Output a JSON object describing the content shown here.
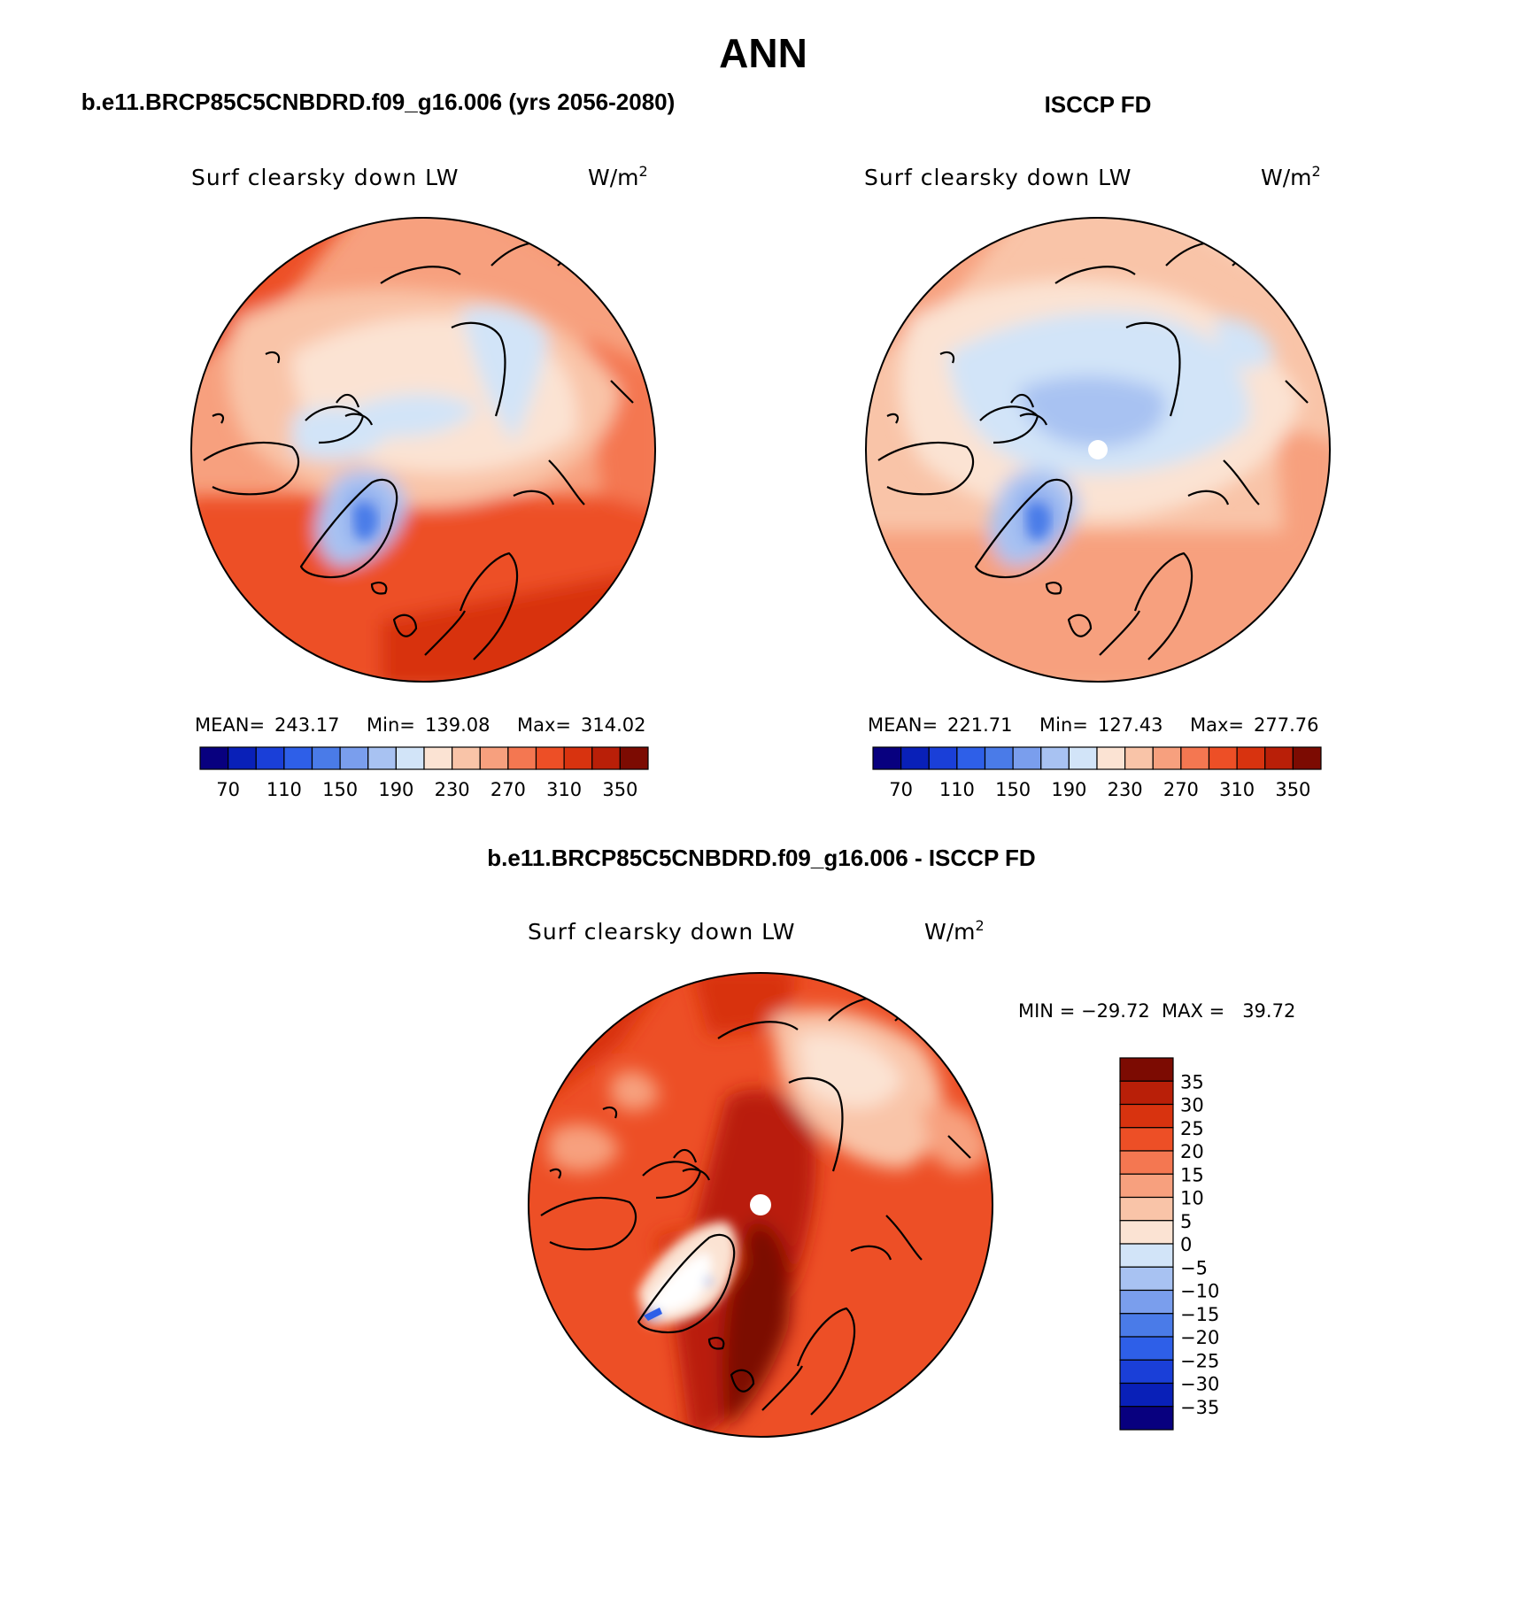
{
  "title": "ANN",
  "panels": [
    {
      "id": "model",
      "header": "b.e11.BRCP85C5CNBDRD.f09_g16.006 (yrs 2056-2080)",
      "variable": "Surf clearsky down LW",
      "units": "W/m",
      "units_exp": "2",
      "stats": {
        "mean_label": "MEAN=",
        "mean": "243.17",
        "min_label": "Min=",
        "min": "139.08",
        "max_label": "Max=",
        "max": "314.02"
      },
      "has_pole_hole": false
    },
    {
      "id": "obs",
      "header": "ISCCP FD",
      "variable": "Surf clearsky down LW",
      "units": "W/m",
      "units_exp": "2",
      "stats": {
        "mean_label": "MEAN=",
        "mean": "221.71",
        "min_label": "Min=",
        "min": "127.43",
        "max_label": "Max=",
        "max": "277.76"
      },
      "has_pole_hole": true
    },
    {
      "id": "diff",
      "header": "b.e11.BRCP85C5CNBDRD.f09_g16.006 - ISCCP FD",
      "variable": "Surf clearsky down LW",
      "units": "W/m",
      "units_exp": "2",
      "minmax_text": "MIN = −29.72  MAX =   39.72",
      "has_pole_hole": true
    }
  ],
  "colorbar_abs": {
    "colors": [
      "#08007f",
      "#0920b8",
      "#1a3fd8",
      "#2e5fe8",
      "#4a7be8",
      "#7a9eed",
      "#a8c2f2",
      "#d2e4f8",
      "#fbe3d3",
      "#f9c4a8",
      "#f7a07e",
      "#f47751",
      "#ed4f26",
      "#d8330f",
      "#b91f08",
      "#7c0b02"
    ],
    "labels": [
      "70",
      "110",
      "150",
      "190",
      "230",
      "270",
      "310",
      "350"
    ]
  },
  "colorbar_diff": {
    "colors": [
      "#08007f",
      "#0920b8",
      "#1a3fd8",
      "#2e5fe8",
      "#4a7be8",
      "#7a9eed",
      "#a8c2f2",
      "#d2e4f8",
      "#fbe3d3",
      "#f9c4a8",
      "#f7a07e",
      "#f47751",
      "#ed4f26",
      "#d8330f",
      "#b91f08",
      "#7c0b02"
    ],
    "labels": [
      "35",
      "30",
      "25",
      "20",
      "15",
      "10",
      "5",
      "0",
      "−5",
      "−10",
      "−15",
      "−20",
      "−25",
      "−30",
      "−35"
    ]
  }
}
